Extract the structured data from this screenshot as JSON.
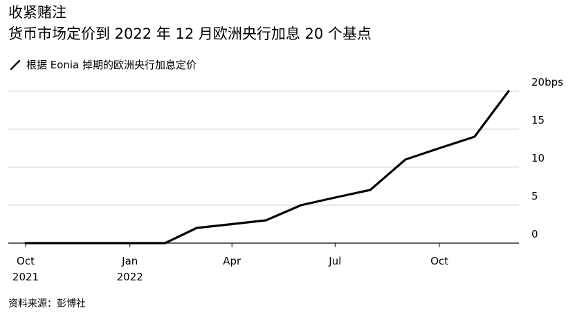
{
  "header": {
    "title": "收紧赌注",
    "subtitle": "货币市场定价到 2022 年 12 月欧洲央行加息 20 个基点"
  },
  "legend": {
    "label": "根据 Eonia 掉期的欧洲央行加息定价"
  },
  "source": "资料来源：彭博社",
  "colors": {
    "line": "#000000",
    "grid": "#d0d0d0",
    "axis": "#000000"
  },
  "chart_data": {
    "type": "line",
    "series": [
      {
        "name": "根据 Eonia 掉期的欧洲央行加息定价",
        "x": [
          "2021-10-01",
          "2021-11-01",
          "2021-12-01",
          "2022-01-01",
          "2022-02-01",
          "2022-03-01",
          "2022-04-01",
          "2022-05-01",
          "2022-06-01",
          "2022-07-01",
          "2022-08-01",
          "2022-09-01",
          "2022-10-01",
          "2022-11-01",
          "2022-12-01"
        ],
        "values": [
          0,
          0,
          0,
          0,
          0,
          2,
          2.5,
          3,
          5,
          6,
          7,
          11,
          12.5,
          14,
          20
        ]
      }
    ],
    "ylim": [
      0,
      20
    ],
    "yticks": [
      0,
      5,
      10,
      15,
      20
    ],
    "ytick_labels": [
      "0",
      "5",
      "10",
      "15",
      "20bps"
    ],
    "xtick_dates": [
      "2021-10-01",
      "2022-01-01",
      "2022-04-01",
      "2022-07-01",
      "2022-10-01"
    ],
    "xtick_labels": [
      [
        "Oct",
        "2021"
      ],
      [
        "Jan",
        "2022"
      ],
      [
        "Apr",
        ""
      ],
      [
        "Jul",
        ""
      ],
      [
        "Oct",
        ""
      ]
    ],
    "xlim": [
      "2021-10-01",
      "2022-12-01"
    ],
    "grid": true,
    "y_axis_side": "right"
  }
}
